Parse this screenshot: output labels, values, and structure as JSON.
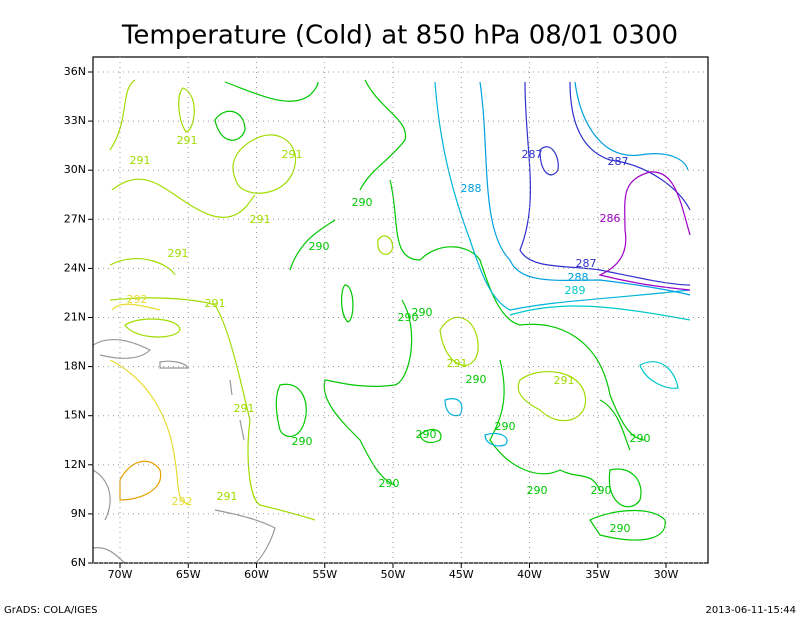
{
  "map": {
    "title": "Temperature (Cold) at 850 hPa 08/01 0300",
    "x_ticks": [
      "70W",
      "65W",
      "60W",
      "55W",
      "50W",
      "45W",
      "40W",
      "35W",
      "30W"
    ],
    "y_ticks": [
      "36N",
      "33N",
      "30N",
      "27N",
      "24N",
      "21N",
      "18N",
      "15N",
      "12N",
      "9N",
      "6N"
    ],
    "contour_labels": [
      "291",
      "291",
      "291",
      "291",
      "291",
      "292",
      "291",
      "290",
      "290",
      "290",
      "290",
      "291",
      "290",
      "291",
      "291",
      "290",
      "290",
      "290",
      "290",
      "290",
      "290",
      "290",
      "290",
      "292",
      "291",
      "288",
      "287",
      "287",
      "286",
      "287",
      "288",
      "289"
    ],
    "footer_left": "GrADS: COLA/IGES",
    "footer_right": "2013-06-11-15:44"
  }
}
